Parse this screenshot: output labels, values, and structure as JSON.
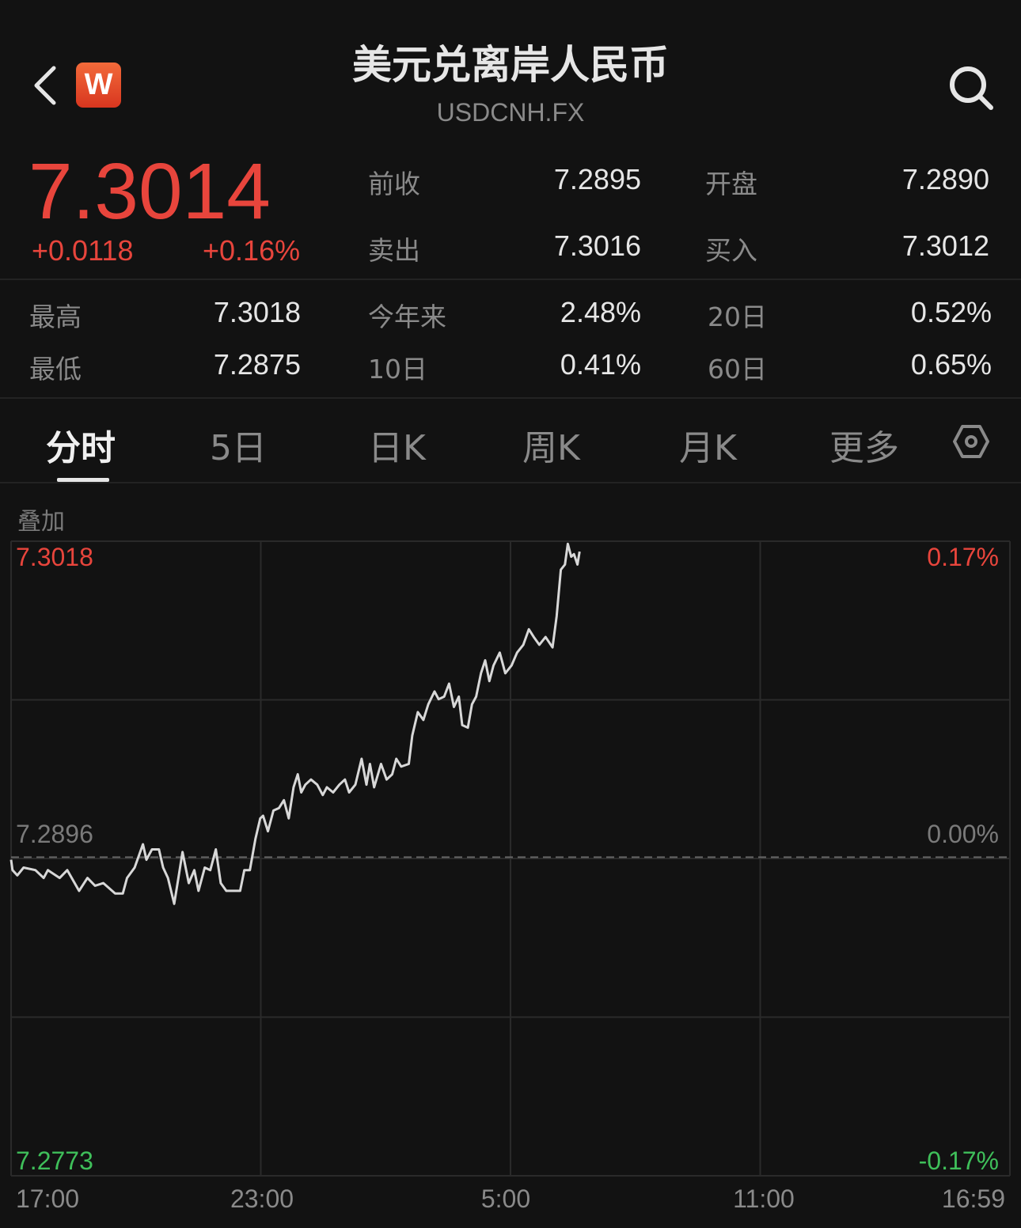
{
  "header": {
    "title": "美元兑离岸人民币",
    "symbol": "USDCNH.FX",
    "logo_text": "W",
    "back_icon": "chevron-left-icon",
    "search_icon": "search-icon"
  },
  "quote": {
    "price": "7.3014",
    "change": "+0.0118",
    "change_pct": "+0.16%",
    "stats": [
      {
        "label": "前收",
        "value": "7.2895"
      },
      {
        "label": "开盘",
        "value": "7.2890"
      },
      {
        "label": "卖出",
        "value": "7.3016"
      },
      {
        "label": "买入",
        "value": "7.3012"
      }
    ],
    "ranges": [
      {
        "label": "最高",
        "value": "7.3018"
      },
      {
        "label": "今年来",
        "value": "2.48%"
      },
      {
        "label": "20日",
        "value": "0.52%"
      },
      {
        "label": "最低",
        "value": "7.2875"
      },
      {
        "label": "10日",
        "value": "0.41%"
      },
      {
        "label": "60日",
        "value": "0.65%"
      }
    ]
  },
  "tabs": [
    {
      "label": "分时",
      "active": true
    },
    {
      "label": "5日"
    },
    {
      "label": "日K"
    },
    {
      "label": "周K"
    },
    {
      "label": "月K"
    },
    {
      "label": "更多"
    }
  ],
  "settings_icon": "hexagon-settings-icon",
  "overlay_label": "叠加",
  "colors": {
    "up": "#e8453c",
    "down": "#3fbf5a",
    "line": "#d8d8d8",
    "background": "#121212"
  },
  "chart_data": {
    "type": "line",
    "y_left_labels": {
      "top": "7.3018",
      "mid": "7.2896",
      "bottom": "7.2773"
    },
    "y_right_labels": {
      "top": "0.17%",
      "mid": "0.00%",
      "bottom": "-0.17%"
    },
    "ylim": [
      7.2773,
      7.3018
    ],
    "reference": 7.2896,
    "x_labels": [
      "17:00",
      "23:00",
      "5:00",
      "11:00",
      "16:59"
    ],
    "xlim": [
      "17:00",
      "16:59"
    ],
    "grid": true,
    "series": [
      {
        "points": [
          [
            "17:00",
            7.2895
          ],
          [
            "17:02",
            7.2891
          ],
          [
            "17:09",
            7.2889
          ],
          [
            "17:18",
            7.2892
          ],
          [
            "17:35",
            7.2891
          ],
          [
            "17:47",
            7.2888
          ],
          [
            "17:53",
            7.2891
          ],
          [
            "18:10",
            7.2888
          ],
          [
            "18:21",
            7.2891
          ],
          [
            "18:38",
            7.2883
          ],
          [
            "18:50",
            7.2888
          ],
          [
            "19:01",
            7.2885
          ],
          [
            "19:13",
            7.2886
          ],
          [
            "19:30",
            7.2882
          ],
          [
            "19:41",
            7.2882
          ],
          [
            "19:47",
            7.2888
          ],
          [
            "19:58",
            7.2892
          ],
          [
            "20:10",
            7.2901
          ],
          [
            "20:15",
            7.2895
          ],
          [
            "20:23",
            7.2899
          ],
          [
            "20:33",
            7.2899
          ],
          [
            "20:39",
            7.2892
          ],
          [
            "20:46",
            7.2888
          ],
          [
            "20:55",
            7.2878
          ],
          [
            "21:01",
            7.2888
          ],
          [
            "21:07",
            7.2898
          ],
          [
            "21:16",
            7.2886
          ],
          [
            "21:24",
            7.2891
          ],
          [
            "21:30",
            7.2883
          ],
          [
            "21:39",
            7.2892
          ],
          [
            "21:47",
            7.2891
          ],
          [
            "21:55",
            7.2899
          ],
          [
            "22:02",
            7.2886
          ],
          [
            "22:10",
            7.2883
          ],
          [
            "22:21",
            7.2883
          ],
          [
            "22:30",
            7.2883
          ],
          [
            "22:36",
            7.2891
          ],
          [
            "22:44",
            7.2891
          ],
          [
            "22:52",
            7.2903
          ],
          [
            "22:59",
            7.2911
          ],
          [
            "23:03",
            7.2912
          ],
          [
            "23:10",
            7.2906
          ],
          [
            "23:18",
            7.2914
          ],
          [
            "23:26",
            7.2915
          ],
          [
            "23:33",
            7.2918
          ],
          [
            "23:40",
            7.2911
          ],
          [
            "23:47",
            7.2923
          ],
          [
            "23:53",
            7.2928
          ],
          [
            "23:58",
            7.2921
          ],
          [
            "00:04",
            7.2924
          ],
          [
            "00:12",
            7.2926
          ],
          [
            "00:21",
            7.2924
          ],
          [
            "00:29",
            7.292
          ],
          [
            "00:35",
            7.2923
          ],
          [
            "00:44",
            7.2921
          ],
          [
            "00:53",
            7.2924
          ],
          [
            "01:01",
            7.2926
          ],
          [
            "01:07",
            7.2921
          ],
          [
            "01:16",
            7.2924
          ],
          [
            "01:25",
            7.2934
          ],
          [
            "01:32",
            7.2924
          ],
          [
            "01:37",
            7.2932
          ],
          [
            "01:43",
            7.2923
          ],
          [
            "01:53",
            7.2932
          ],
          [
            "02:01",
            7.2926
          ],
          [
            "02:09",
            7.2928
          ],
          [
            "02:15",
            7.2934
          ],
          [
            "02:22",
            7.2931
          ],
          [
            "02:33",
            7.2932
          ],
          [
            "02:38",
            7.2943
          ],
          [
            "02:46",
            7.2952
          ],
          [
            "02:54",
            7.2949
          ],
          [
            "03:01",
            7.2955
          ],
          [
            "03:10",
            7.296
          ],
          [
            "03:16",
            7.2957
          ],
          [
            "03:24",
            7.2958
          ],
          [
            "03:31",
            7.2963
          ],
          [
            "03:38",
            7.2954
          ],
          [
            "03:45",
            7.2958
          ],
          [
            "03:50",
            7.2947
          ],
          [
            "03:58",
            7.2946
          ],
          [
            "04:04",
            7.2955
          ],
          [
            "04:10",
            7.2958
          ],
          [
            "04:17",
            7.2967
          ],
          [
            "04:23",
            7.2972
          ],
          [
            "04:29",
            7.2964
          ],
          [
            "04:35",
            7.297
          ],
          [
            "04:44",
            7.2975
          ],
          [
            "04:52",
            7.2967
          ],
          [
            "05:01",
            7.297
          ],
          [
            "05:09",
            7.2975
          ],
          [
            "05:18",
            7.2978
          ],
          [
            "05:26",
            7.2984
          ],
          [
            "05:33",
            7.2981
          ],
          [
            "05:41",
            7.2978
          ],
          [
            "05:50",
            7.2981
          ],
          [
            "06:00",
            7.2977
          ],
          [
            "06:06",
            7.2989
          ],
          [
            "06:12",
            7.3007
          ],
          [
            "06:18",
            7.3009
          ],
          [
            "06:22",
            7.3017
          ],
          [
            "06:27",
            7.3012
          ],
          [
            "06:31",
            7.3013
          ],
          [
            "06:36",
            7.3009
          ],
          [
            "06:39",
            7.3014
          ]
        ]
      }
    ]
  }
}
